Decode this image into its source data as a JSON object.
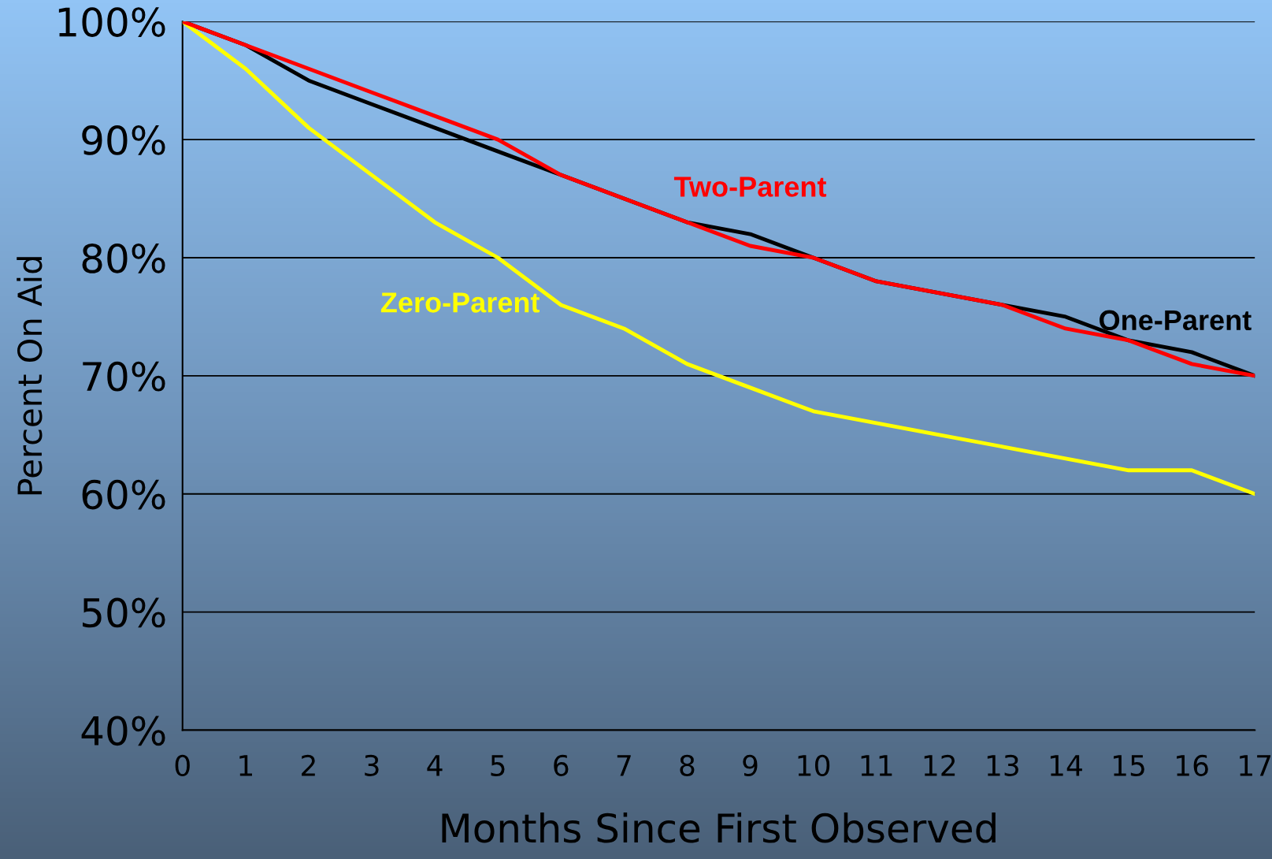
{
  "chart_data": {
    "type": "line",
    "xlabel": "Months Since First Observed",
    "ylabel": "Percent On Aid",
    "x": [
      0,
      1,
      2,
      3,
      4,
      5,
      6,
      7,
      8,
      9,
      10,
      11,
      12,
      13,
      14,
      15,
      16,
      17
    ],
    "series": [
      {
        "name": "One-Parent",
        "color": "#000000",
        "values": [
          100,
          98,
          95,
          93,
          91,
          89,
          87,
          85,
          83,
          82,
          80,
          78,
          77,
          76,
          75,
          73,
          72,
          70
        ]
      },
      {
        "name": "Two-Parent",
        "color": "#ff0000",
        "values": [
          100,
          98,
          96,
          94,
          92,
          90,
          87,
          85,
          83,
          81,
          80,
          78,
          77,
          76,
          74,
          73,
          71,
          70
        ]
      },
      {
        "name": "Zero-Parent",
        "color": "#ffff00",
        "values": [
          100,
          96,
          91,
          87,
          83,
          80,
          76,
          74,
          71,
          69,
          67,
          66,
          65,
          64,
          63,
          62,
          62,
          60
        ]
      }
    ],
    "xlim": [
      0,
      17
    ],
    "xticks": [
      0,
      1,
      2,
      3,
      4,
      5,
      6,
      7,
      8,
      9,
      10,
      11,
      12,
      13,
      14,
      15,
      16,
      17
    ],
    "ylim": [
      40,
      100
    ],
    "yticks": [
      {
        "value": 40,
        "label": "40%"
      },
      {
        "value": 50,
        "label": "50%"
      },
      {
        "value": 60,
        "label": "60%"
      },
      {
        "value": 70,
        "label": "70%"
      },
      {
        "value": 80,
        "label": "80%"
      },
      {
        "value": 90,
        "label": "90%"
      },
      {
        "value": 100,
        "label": "100%"
      }
    ],
    "grid": "y",
    "legend": false,
    "marker": "none",
    "line_style": "solid"
  }
}
